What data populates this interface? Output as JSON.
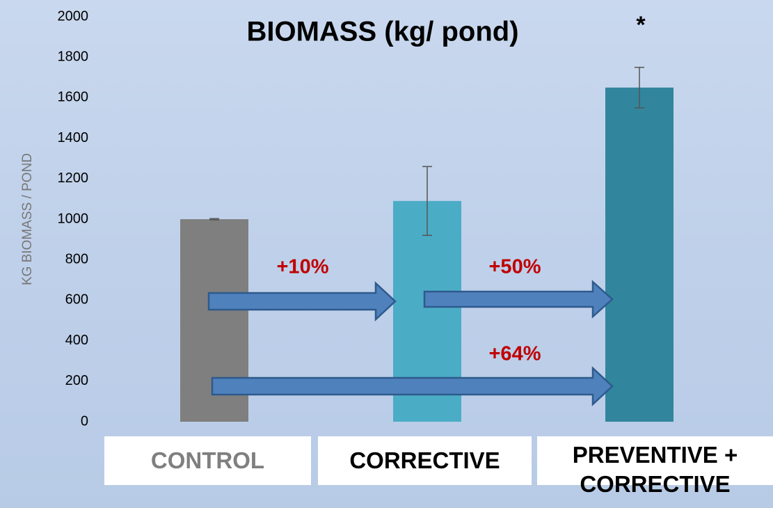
{
  "chart_data": {
    "type": "bar",
    "title": "BIOMASS (kg/ pond)",
    "y_label": "KG BIOMASS / POND",
    "categories": [
      "CONTROL",
      "CORRECTIVE",
      "PREVENTIVE + CORRECTIVE"
    ],
    "values": [
      1000,
      1090,
      1650
    ],
    "errors": [
      3,
      170,
      100
    ],
    "colors": [
      "#7f7f7f",
      "#4bacc6",
      "#31859c"
    ],
    "ylim": [
      0,
      2000
    ],
    "yticks": [
      0,
      200,
      400,
      600,
      800,
      1000,
      1200,
      1400,
      1600,
      1800,
      2000
    ],
    "grid": false,
    "annotations": [
      "+10%",
      "+50%",
      "+64%",
      "*"
    ]
  }
}
